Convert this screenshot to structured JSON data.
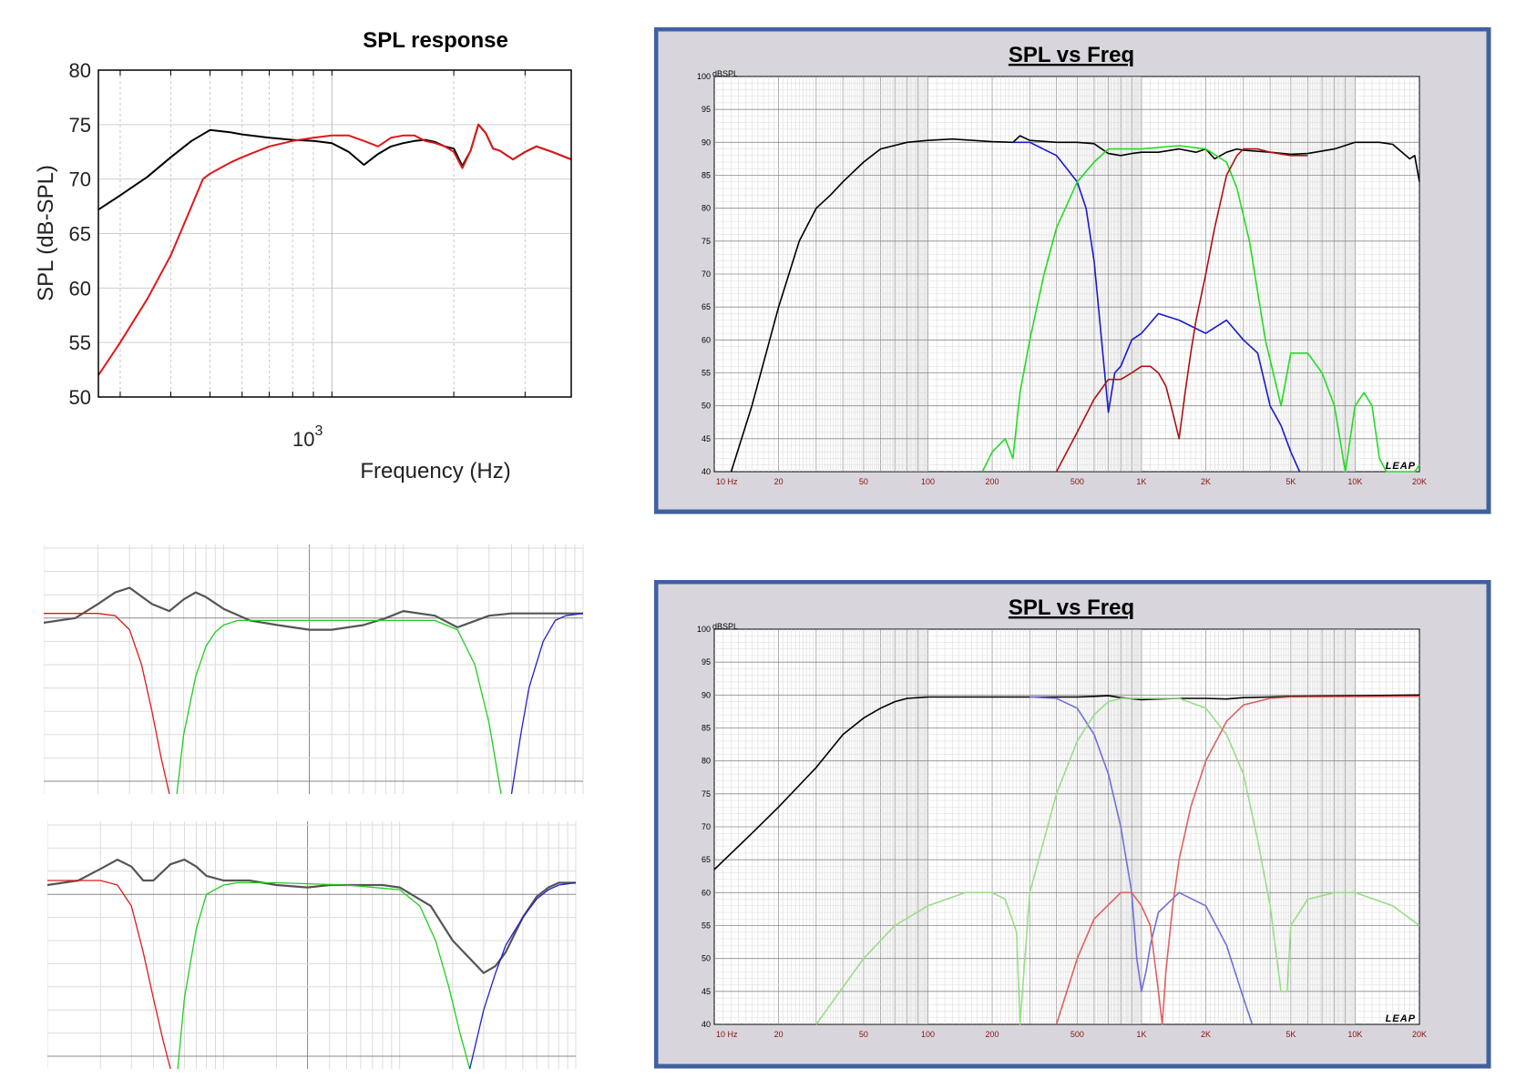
{
  "colors": {
    "black": "#000000",
    "red": "#e01818",
    "green": "#22dd22",
    "blue": "#1a1acc",
    "dark_red": "#b01010",
    "leap_frame": "#4060a0",
    "leap_bg": "#d8d6dc",
    "gray_line": "#555555"
  },
  "chart_data": [
    {
      "id": "matlab",
      "type": "line",
      "title": "SPL response",
      "xlabel": "Frequency (Hz)",
      "ylabel": "SPL (dB-SPL)",
      "xscale": "log",
      "xlim": [
        265,
        3900
      ],
      "ylim": [
        50,
        80
      ],
      "yticks": [
        "50",
        "55",
        "60",
        "65",
        "70",
        "75",
        "80"
      ],
      "xtick_label": {
        "base": "10",
        "exp": "3"
      },
      "grid": true,
      "series": [
        {
          "color": "#000000",
          "x": [
            265,
            300,
            350,
            400,
            450,
            500,
            560,
            600,
            700,
            800,
            900,
            1000,
            1100,
            1200,
            1300,
            1400,
            1500,
            1600,
            1700,
            1800,
            1900,
            2000,
            2100,
            2200,
            2300,
            2400,
            2500,
            2600,
            2800,
            3000,
            3200,
            3500,
            3900
          ],
          "y": [
            67.2,
            68.5,
            70.2,
            72,
            73.5,
            74.5,
            74.3,
            74.1,
            73.8,
            73.6,
            73.5,
            73.3,
            72.5,
            71.3,
            72.3,
            73,
            73.3,
            73.5,
            73.6,
            73.4,
            73,
            72.8,
            71.2,
            72.6,
            75,
            74.2,
            72.8,
            72.6,
            71.8,
            72.5,
            73,
            72.5,
            71.8
          ]
        },
        {
          "color": "#e01818",
          "x": [
            265,
            300,
            350,
            400,
            450,
            480,
            500,
            560,
            600,
            700,
            800,
            900,
            1000,
            1100,
            1200,
            1300,
            1400,
            1500,
            1600,
            1700,
            1800,
            1900,
            2000,
            2100,
            2200,
            2300,
            2400,
            2500,
            2600,
            2800,
            3000,
            3200,
            3500,
            3900
          ],
          "y": [
            52,
            55,
            59,
            63,
            67.5,
            70,
            70.5,
            71.5,
            72,
            73,
            73.5,
            73.8,
            74,
            74,
            73.5,
            73,
            73.8,
            74,
            74,
            73.5,
            73.3,
            73,
            72.5,
            71,
            72.6,
            75,
            74.2,
            72.8,
            72.6,
            71.8,
            72.5,
            73,
            72.5,
            71.8
          ]
        }
      ]
    },
    {
      "id": "leap_top",
      "type": "line",
      "title": "SPL vs Freq",
      "ylabel": "dBSPL",
      "brand": "LEAP",
      "xscale": "log",
      "xlim": [
        10,
        20000
      ],
      "ylim": [
        40,
        100
      ],
      "yticks": [
        "100",
        "95",
        "90",
        "85",
        "80",
        "75",
        "70",
        "65",
        "60",
        "55",
        "50",
        "45",
        "40"
      ],
      "xticks": [
        {
          "v": 10,
          "t": "10  Hz"
        },
        {
          "v": 20,
          "t": "20"
        },
        {
          "v": 50,
          "t": "50"
        },
        {
          "v": 100,
          "t": "100"
        },
        {
          "v": 200,
          "t": "200"
        },
        {
          "v": 500,
          "t": "500"
        },
        {
          "v": 1000,
          "t": "1K"
        },
        {
          "v": 2000,
          "t": "2K"
        },
        {
          "v": 5000,
          "t": "5K"
        },
        {
          "v": 10000,
          "t": "10K"
        },
        {
          "v": 20000,
          "t": "20K"
        }
      ],
      "series": [
        {
          "color": "#000000",
          "x": [
            12,
            15,
            20,
            25,
            30,
            35,
            40,
            50,
            60,
            80,
            100,
            130,
            200,
            250,
            270,
            300,
            400,
            500,
            600,
            700,
            800,
            900,
            1000,
            1200,
            1500,
            1800,
            2000,
            2200,
            2500,
            2800,
            3000,
            4000,
            5000,
            6000,
            8000,
            10000,
            13000,
            15000,
            18000,
            19000,
            20000
          ],
          "y": [
            40,
            50,
            65,
            75,
            80,
            82,
            84,
            87,
            89,
            90,
            90.3,
            90.5,
            90.1,
            90,
            91,
            90.3,
            90,
            90,
            89.8,
            88.3,
            88,
            88.3,
            88.5,
            88.5,
            89,
            88.5,
            89,
            87.5,
            88.5,
            89,
            88.8,
            88.5,
            88.2,
            88.3,
            89,
            90,
            90,
            89.7,
            87.5,
            88,
            84
          ]
        },
        {
          "color": "#1a1acc",
          "x": [
            250,
            300,
            400,
            500,
            550,
            600,
            650,
            700,
            750,
            800,
            900,
            1000,
            1200,
            1500,
            2000,
            2500,
            3000,
            3500,
            4000,
            4500,
            5000,
            5500
          ],
          "y": [
            90,
            90,
            88,
            84,
            80,
            72,
            60,
            49,
            55,
            56,
            60,
            61,
            64,
            63,
            61,
            63,
            60,
            58,
            50,
            47,
            43,
            40
          ]
        },
        {
          "color": "#22dd22",
          "x": [
            180,
            200,
            230,
            250,
            270,
            300,
            350,
            400,
            500,
            600,
            700,
            800,
            1000,
            1500,
            2000,
            2500,
            2800,
            3200,
            3800,
            4500,
            5000,
            6000,
            7000,
            8000,
            9000,
            10000,
            11000,
            12000,
            13000,
            14000,
            15000,
            16000,
            17000,
            18000,
            19000,
            20000
          ],
          "y": [
            40,
            43,
            45,
            42,
            52,
            60,
            70,
            77,
            84,
            87,
            89,
            89,
            89,
            89.5,
            89,
            87,
            83,
            75,
            60,
            50,
            58,
            58,
            55,
            50,
            40,
            50,
            52,
            50,
            42,
            40,
            40,
            40,
            40,
            40,
            40,
            41
          ]
        },
        {
          "color": "#b01010",
          "x": [
            400,
            500,
            600,
            700,
            800,
            900,
            1000,
            1100,
            1200,
            1300,
            1400,
            1500,
            1600,
            1700,
            1800,
            2000,
            2200,
            2500,
            2800,
            3000,
            3500,
            4000,
            5000,
            6000
          ],
          "y": [
            40,
            46,
            51,
            54,
            54,
            55,
            56,
            56,
            55,
            53,
            49,
            45,
            52,
            58,
            63,
            70,
            77,
            85,
            88,
            89,
            89,
            88.5,
            88,
            88
          ]
        }
      ]
    },
    {
      "id": "leap_bottom",
      "type": "line",
      "title": "SPL vs Freq",
      "ylabel": "dBSPL",
      "brand": "LEAP",
      "xscale": "log",
      "xlim": [
        10,
        20000
      ],
      "ylim": [
        40,
        100
      ],
      "yticks": [
        "100",
        "95",
        "90",
        "85",
        "80",
        "75",
        "70",
        "65",
        "60",
        "55",
        "50",
        "45",
        "40"
      ],
      "xticks": [
        {
          "v": 10,
          "t": "10  Hz"
        },
        {
          "v": 20,
          "t": "20"
        },
        {
          "v": 50,
          "t": "50"
        },
        {
          "v": 100,
          "t": "100"
        },
        {
          "v": 200,
          "t": "200"
        },
        {
          "v": 500,
          "t": "500"
        },
        {
          "v": 1000,
          "t": "1K"
        },
        {
          "v": 2000,
          "t": "2K"
        },
        {
          "v": 5000,
          "t": "5K"
        },
        {
          "v": 10000,
          "t": "10K"
        },
        {
          "v": 20000,
          "t": "20K"
        }
      ],
      "series": [
        {
          "color": "#000000",
          "x": [
            10,
            15,
            20,
            30,
            40,
            50,
            60,
            70,
            80,
            100,
            150,
            200,
            300,
            400,
            500,
            600,
            700,
            800,
            1000,
            1200,
            1500,
            2000,
            2500,
            3000,
            4000,
            5000,
            10000,
            20000
          ],
          "y": [
            63.5,
            69,
            73,
            79,
            84,
            86.5,
            88,
            89,
            89.5,
            89.7,
            89.7,
            89.7,
            89.7,
            89.7,
            89.7,
            89.8,
            89.9,
            89.6,
            89.3,
            89.4,
            89.5,
            89.5,
            89.4,
            89.6,
            89.7,
            89.8,
            89.9,
            90
          ]
        },
        {
          "color": "#7070dd",
          "x": [
            300,
            400,
            500,
            600,
            700,
            800,
            900,
            950,
            1000,
            1050,
            1100,
            1200,
            1500,
            2000,
            2500,
            3000,
            3300
          ],
          "y": [
            89.7,
            89.5,
            88,
            84,
            78,
            70,
            60,
            50,
            45,
            48,
            52,
            57,
            60,
            58,
            52,
            44,
            40
          ]
        },
        {
          "color": "#99dd88",
          "x": [
            30,
            50,
            70,
            100,
            150,
            200,
            230,
            260,
            270,
            300,
            400,
            500,
            600,
            700,
            800,
            1000,
            1500,
            2000,
            2500,
            3000,
            3500,
            4000,
            4500,
            4800,
            5000,
            6000,
            8000,
            10000,
            15000,
            20000
          ],
          "y": [
            40,
            50,
            55,
            58,
            60,
            60,
            59,
            54,
            40,
            60,
            75,
            83,
            87,
            89,
            89.5,
            89.5,
            89.5,
            88,
            84,
            78,
            68,
            58,
            45,
            45,
            55,
            59,
            60,
            60,
            58,
            55
          ]
        },
        {
          "color": "#e06060",
          "x": [
            400,
            500,
            600,
            800,
            900,
            1000,
            1100,
            1200,
            1250,
            1300,
            1400,
            1500,
            1700,
            2000,
            2500,
            3000,
            4000,
            5000,
            20000
          ],
          "y": [
            40,
            50,
            56,
            60,
            60,
            58,
            55,
            45,
            40,
            48,
            58,
            65,
            73,
            80,
            86,
            88.5,
            89.5,
            89.7,
            89.8
          ]
        }
      ]
    },
    {
      "id": "gray_top",
      "type": "line",
      "xscale": "log",
      "xlim": [
        1,
        1000
      ],
      "ylim": [
        0,
        10
      ],
      "grid": true,
      "series": [
        {
          "color": "#555555",
          "x": [
            1,
            1.5,
            2,
            2.5,
            3,
            4,
            5,
            6,
            7,
            8,
            10,
            14,
            20,
            30,
            40,
            60,
            80,
            100,
            150,
            200,
            300,
            400,
            500,
            700,
            1000
          ],
          "y": [
            6.8,
            7,
            7.6,
            8.1,
            8.3,
            7.6,
            7.3,
            7.8,
            8.1,
            7.9,
            7.4,
            6.9,
            6.7,
            6.5,
            6.5,
            6.7,
            7,
            7.3,
            7.1,
            6.6,
            7.1,
            7.2,
            7.2,
            7.2,
            7.2
          ]
        },
        {
          "color": "#e01818",
          "x": [
            1,
            2,
            2.5,
            3,
            3.5,
            4,
            4.5,
            5
          ],
          "y": [
            7.2,
            7.2,
            7.1,
            6.5,
            5,
            3,
            1,
            0
          ]
        },
        {
          "color": "#22cc22",
          "x": [
            5.5,
            6,
            7,
            8,
            9,
            10,
            12,
            15,
            20,
            50,
            100,
            150,
            200,
            250,
            300,
            350
          ],
          "y": [
            0,
            2,
            4.5,
            5.8,
            6.4,
            6.7,
            6.9,
            6.9,
            6.9,
            6.9,
            6.9,
            6.9,
            6.5,
            5,
            2.5,
            0
          ]
        },
        {
          "color": "#2020cc",
          "x": [
            400,
            450,
            500,
            600,
            700,
            800,
            1000
          ],
          "y": [
            0,
            2,
            4,
            6,
            6.9,
            7.1,
            7.2
          ]
        }
      ]
    },
    {
      "id": "gray_bottom",
      "type": "line",
      "xscale": "log",
      "xlim": [
        1,
        1000
      ],
      "ylim": [
        0,
        10
      ],
      "grid": true,
      "series": [
        {
          "color": "#555555",
          "x": [
            1,
            1.5,
            2,
            2.5,
            3,
            3.5,
            4,
            5,
            6,
            7,
            8,
            10,
            14,
            20,
            30,
            40,
            60,
            80,
            100,
            150,
            200,
            300,
            350,
            400,
            450,
            500,
            600,
            700,
            800,
            1000
          ],
          "y": [
            7.4,
            7.6,
            8.1,
            8.5,
            8.2,
            7.6,
            7.6,
            8.3,
            8.5,
            8.2,
            7.8,
            7.6,
            7.6,
            7.4,
            7.3,
            7.4,
            7.4,
            7.4,
            7.3,
            6.5,
            5,
            3.6,
            3.9,
            4.5,
            5.3,
            6,
            6.9,
            7.3,
            7.5,
            7.5
          ]
        },
        {
          "color": "#e01818",
          "x": [
            1,
            2,
            2.5,
            3,
            3.5,
            4,
            4.5,
            5
          ],
          "y": [
            7.6,
            7.6,
            7.4,
            6.5,
            4.5,
            2.5,
            0.8,
            0
          ]
        },
        {
          "color": "#22cc22",
          "x": [
            5.5,
            6,
            7,
            8,
            10,
            12,
            15,
            20,
            50,
            100,
            130,
            160,
            190,
            220,
            250
          ],
          "y": [
            0,
            2.5,
            5.5,
            7,
            7.4,
            7.5,
            7.5,
            7.5,
            7.4,
            7.2,
            6.5,
            5,
            3,
            1,
            0
          ]
        },
        {
          "color": "#2020cc",
          "x": [
            250,
            300,
            350,
            400,
            500,
            600,
            700,
            800,
            1000
          ],
          "y": [
            0,
            2,
            3.6,
            4.8,
            6,
            6.8,
            7.2,
            7.4,
            7.5
          ]
        }
      ]
    }
  ]
}
